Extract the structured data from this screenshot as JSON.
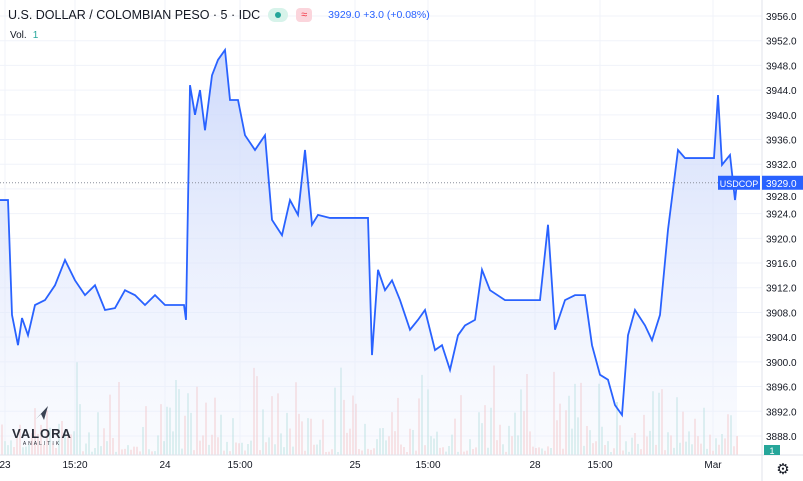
{
  "header": {
    "title": "U.S. DOLLAR / COLOMBIAN PESO · 5 · IDC",
    "last": "3929.0",
    "change": "+3.0 (+0.08%)",
    "status_icon": "market-open-dot",
    "approx_icon": "approx-equal"
  },
  "volume": {
    "label": "Vol.",
    "value": "1",
    "badge": "1"
  },
  "logo": {
    "name": "VALORA",
    "sub": "ANALITIK"
  },
  "colors": {
    "line": "#2962ff",
    "fill": "#dbe4fb",
    "up": "#26a69a",
    "down": "#ef5350",
    "tag": "#2962ff"
  },
  "chart_data": {
    "type": "area",
    "symbol_tag": "USDCOP",
    "price_tag": "3929.0",
    "ylim": [
      3886,
      3958
    ],
    "y_ticks": [
      "3956.0",
      "3952.0",
      "3948.0",
      "3944.0",
      "3940.0",
      "3936.0",
      "3932.0",
      "3928.0",
      "3924.0",
      "3920.0",
      "3916.0",
      "3912.0",
      "3908.0",
      "3904.0",
      "3900.0",
      "3896.0",
      "3892.0",
      "3888.0"
    ],
    "x_ticks": [
      {
        "t": 5,
        "label": "23"
      },
      {
        "t": 75,
        "label": "15:20"
      },
      {
        "t": 165,
        "label": "24"
      },
      {
        "t": 240,
        "label": "15:00"
      },
      {
        "t": 355,
        "label": "25"
      },
      {
        "t": 428,
        "label": "15:00"
      },
      {
        "t": 535,
        "label": "28"
      },
      {
        "t": 600,
        "label": "15:00"
      },
      {
        "t": 713,
        "label": "Mar"
      }
    ],
    "series": [
      [
        0,
        3926.2
      ],
      [
        8,
        3926.2
      ],
      [
        12,
        3907.6
      ],
      [
        18,
        3902.7
      ],
      [
        22,
        3907.1
      ],
      [
        28,
        3904.3
      ],
      [
        35,
        3909.2
      ],
      [
        45,
        3910.0
      ],
      [
        55,
        3912.4
      ],
      [
        65,
        3916.5
      ],
      [
        75,
        3913.2
      ],
      [
        85,
        3910.8
      ],
      [
        95,
        3912.4
      ],
      [
        105,
        3908.4
      ],
      [
        115,
        3908.7
      ],
      [
        125,
        3911.6
      ],
      [
        135,
        3910.8
      ],
      [
        145,
        3909.2
      ],
      [
        155,
        3910.8
      ],
      [
        165,
        3909.2
      ],
      [
        184,
        3909.2
      ],
      [
        186,
        3906.8
      ],
      [
        190,
        3944.8
      ],
      [
        195,
        3940.0
      ],
      [
        200,
        3944.0
      ],
      [
        205,
        3937.5
      ],
      [
        212,
        3946.4
      ],
      [
        218,
        3948.9
      ],
      [
        225,
        3950.5
      ],
      [
        230,
        3942.4
      ],
      [
        238,
        3942.4
      ],
      [
        245,
        3936.7
      ],
      [
        255,
        3934.3
      ],
      [
        265,
        3936.7
      ],
      [
        272,
        3923.0
      ],
      [
        282,
        3920.5
      ],
      [
        290,
        3926.2
      ],
      [
        298,
        3923.8
      ],
      [
        305,
        3934.3
      ],
      [
        312,
        3922.2
      ],
      [
        318,
        3923.8
      ],
      [
        330,
        3923.3
      ],
      [
        368,
        3923.3
      ],
      [
        372,
        3901.1
      ],
      [
        378,
        3914.9
      ],
      [
        385,
        3911.6
      ],
      [
        392,
        3913.2
      ],
      [
        400,
        3910.0
      ],
      [
        410,
        3905.2
      ],
      [
        418,
        3906.8
      ],
      [
        425,
        3908.4
      ],
      [
        435,
        3901.9
      ],
      [
        442,
        3902.7
      ],
      [
        450,
        3898.7
      ],
      [
        458,
        3904.3
      ],
      [
        465,
        3905.9
      ],
      [
        475,
        3906.8
      ],
      [
        482,
        3914.9
      ],
      [
        490,
        3911.6
      ],
      [
        505,
        3910.0
      ],
      [
        540,
        3910.0
      ],
      [
        548,
        3922.2
      ],
      [
        555,
        3905.2
      ],
      [
        565,
        3910.0
      ],
      [
        575,
        3910.8
      ],
      [
        585,
        3910.8
      ],
      [
        592,
        3902.7
      ],
      [
        600,
        3897.9
      ],
      [
        608,
        3897.1
      ],
      [
        615,
        3893.0
      ],
      [
        622,
        3891.4
      ],
      [
        628,
        3904.3
      ],
      [
        635,
        3908.4
      ],
      [
        645,
        3905.9
      ],
      [
        652,
        3903.5
      ],
      [
        660,
        3907.6
      ],
      [
        668,
        3921.4
      ],
      [
        678,
        3934.3
      ],
      [
        685,
        3933.0
      ],
      [
        714,
        3933.0
      ],
      [
        718,
        3943.2
      ],
      [
        722,
        3931.9
      ],
      [
        730,
        3933.5
      ],
      [
        735,
        3926.2
      ],
      [
        737,
        3929.0
      ]
    ]
  }
}
